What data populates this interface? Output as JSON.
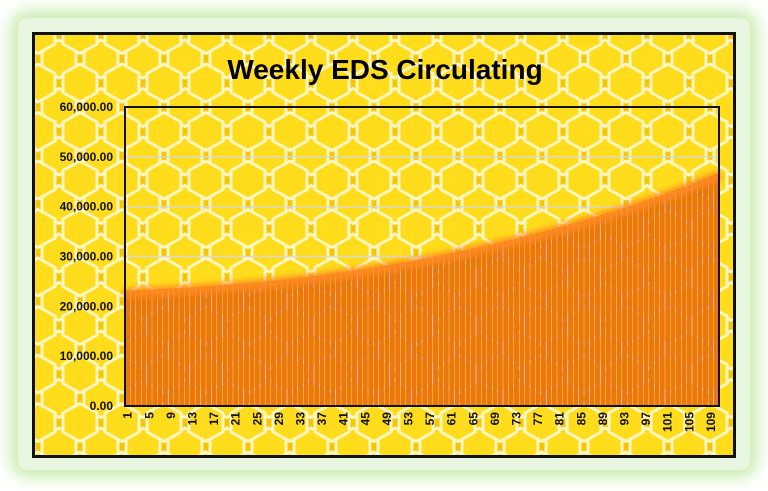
{
  "colors": {
    "honey_bg": "#f6c600",
    "honey_cell": "#ffdc1c",
    "honey_line": "#fff6c0",
    "bar_fill": "#ec7514",
    "bar_edge": "#d9640d",
    "border": "#111111",
    "glow": "#c9edb2"
  },
  "chart_data": {
    "type": "bar",
    "title": "Weekly EDS Circulating",
    "xlabel": "",
    "ylabel": "",
    "ylim": [
      0,
      60000
    ],
    "y_ticks": [
      "0.00",
      "10,000.00",
      "20,000.00",
      "30,000.00",
      "40,000.00",
      "50,000.00",
      "60,000.00"
    ],
    "x_tick_labels": [
      "1",
      "5",
      "9",
      "13",
      "17",
      "21",
      "25",
      "29",
      "33",
      "37",
      "41",
      "45",
      "49",
      "53",
      "57",
      "61",
      "65",
      "69",
      "73",
      "77",
      "81",
      "85",
      "89",
      "93",
      "97",
      "101",
      "105",
      "109"
    ],
    "grid": true,
    "legend": "none",
    "categories": [
      1,
      2,
      3,
      4,
      5,
      6,
      7,
      8,
      9,
      10,
      11,
      12,
      13,
      14,
      15,
      16,
      17,
      18,
      19,
      20,
      21,
      22,
      23,
      24,
      25,
      26,
      27,
      28,
      29,
      30,
      31,
      32,
      33,
      34,
      35,
      36,
      37,
      38,
      39,
      40,
      41,
      42,
      43,
      44,
      45,
      46,
      47,
      48,
      49,
      50,
      51,
      52,
      53,
      54,
      55,
      56,
      57,
      58,
      59,
      60,
      61,
      62,
      63,
      64,
      65,
      66,
      67,
      68,
      69,
      70,
      71,
      72,
      73,
      74,
      75,
      76,
      77,
      78,
      79,
      80,
      81,
      82,
      83,
      84,
      85,
      86,
      87,
      88,
      89,
      90,
      91,
      92,
      93,
      94,
      95,
      96,
      97,
      98,
      99,
      100,
      101,
      102,
      103,
      104,
      105,
      106,
      107,
      108,
      109,
      110
    ],
    "values": [
      23100,
      23150,
      23200,
      23250,
      23300,
      23350,
      23400,
      23460,
      23520,
      23580,
      23640,
      23700,
      23760,
      23830,
      23900,
      23970,
      24050,
      24130,
      24210,
      24300,
      24390,
      24480,
      24570,
      24670,
      24770,
      24870,
      24980,
      25090,
      25200,
      25320,
      25440,
      25560,
      25690,
      25820,
      25950,
      26090,
      26230,
      26370,
      26520,
      26670,
      26820,
      26980,
      27140,
      27300,
      27470,
      27640,
      27810,
      27990,
      28170,
      28350,
      28540,
      28730,
      28920,
      29120,
      29320,
      29530,
      29740,
      29950,
      30170,
      30390,
      30610,
      30840,
      31070,
      31300,
      31540,
      31780,
      32020,
      32270,
      32520,
      32770,
      33030,
      33290,
      33550,
      33820,
      34090,
      34370,
      34650,
      34930,
      35220,
      35510,
      35810,
      36110,
      36410,
      36720,
      37030,
      37350,
      37670,
      38000,
      38330,
      38670,
      39010,
      39360,
      39710,
      40070,
      40430,
      40800,
      41170,
      41550,
      41930,
      42320,
      42710,
      43110,
      43510,
      43920,
      44330,
      44750,
      45180,
      45610,
      46050,
      46500
    ]
  }
}
